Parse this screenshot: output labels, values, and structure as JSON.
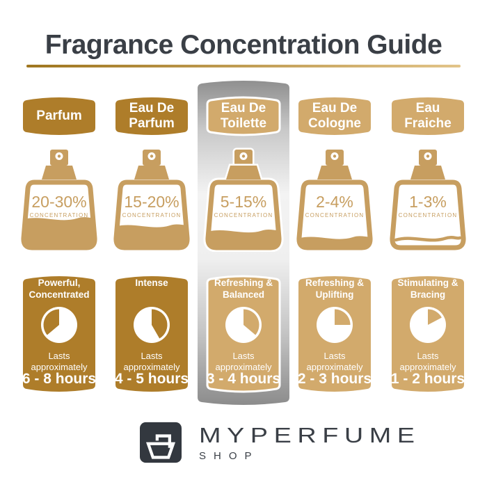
{
  "title": "Fragrance Concentration Guide",
  "palette": {
    "dark-gold": "#AE7D2A",
    "tan": "#D2AA6C",
    "bottle-gold": "#C79E60",
    "ink": "#3A3F46",
    "logo-bg": "#33383F",
    "underline-left": "#9F761F",
    "underline-right": "#E2C489",
    "highlight-silver": "#8E8E8E",
    "white": "#FFFFFF"
  },
  "columns": [
    {
      "id": "parfum",
      "label": "Parfum",
      "concentration": "20-30%",
      "concentration_label": "CONCENTRATION",
      "fill_percent": 46,
      "fill_style": "fill",
      "tone": "dark",
      "highlighted": false,
      "card": {
        "character": "Powerful,\nConcentrated",
        "lasts": "Lasts\napproximately",
        "duration": "6 - 8 hours",
        "clock_start_deg": 230,
        "clock_end_deg": 360
      }
    },
    {
      "id": "eau-de-parfum",
      "label": "Eau De\nParfum",
      "concentration": "15-20%",
      "concentration_label": "CONCENTRATION",
      "fill_percent": 35,
      "fill_style": "fill",
      "tone": "dark",
      "highlighted": false,
      "card": {
        "character": "Intense",
        "lasts": "Lasts\napproximately",
        "duration": "4 - 5 hours",
        "clock_start_deg": 0,
        "clock_end_deg": 150
      }
    },
    {
      "id": "eau-de-toilette",
      "label": "Eau De\nToilette",
      "concentration": "5-15%",
      "concentration_label": "CONCENTRATION",
      "fill_percent": 27,
      "fill_style": "fill",
      "tone": "tan",
      "highlighted": true,
      "card": {
        "character": "Refreshing &\nBalanced",
        "lasts": "Lasts\napproximately",
        "duration": "3 - 4 hours",
        "clock_start_deg": 0,
        "clock_end_deg": 130
      }
    },
    {
      "id": "eau-de-cologne",
      "label": "Eau De\nCologne",
      "concentration": "2-4%",
      "concentration_label": "CONCENTRATION",
      "fill_percent": 17,
      "fill_style": "fill",
      "tone": "tan",
      "highlighted": false,
      "card": {
        "character": "Refreshing &\nUplifting",
        "lasts": "Lasts\napproximately",
        "duration": "2 - 3 hours",
        "clock_start_deg": 0,
        "clock_end_deg": 90
      }
    },
    {
      "id": "eau-fraiche",
      "label": "Eau\nFraiche",
      "concentration": "1-3%",
      "concentration_label": "CONCENTRATION",
      "fill_percent": 15,
      "fill_style": "line",
      "tone": "tan",
      "highlighted": false,
      "card": {
        "character": "Stimulating &\nBracing",
        "lasts": "Lasts\napproximately",
        "duration": "1 - 2 hours",
        "clock_start_deg": 0,
        "clock_end_deg": 62
      }
    }
  ],
  "footer": {
    "brand": "MYPERFUME",
    "subtitle": "SHOP"
  }
}
